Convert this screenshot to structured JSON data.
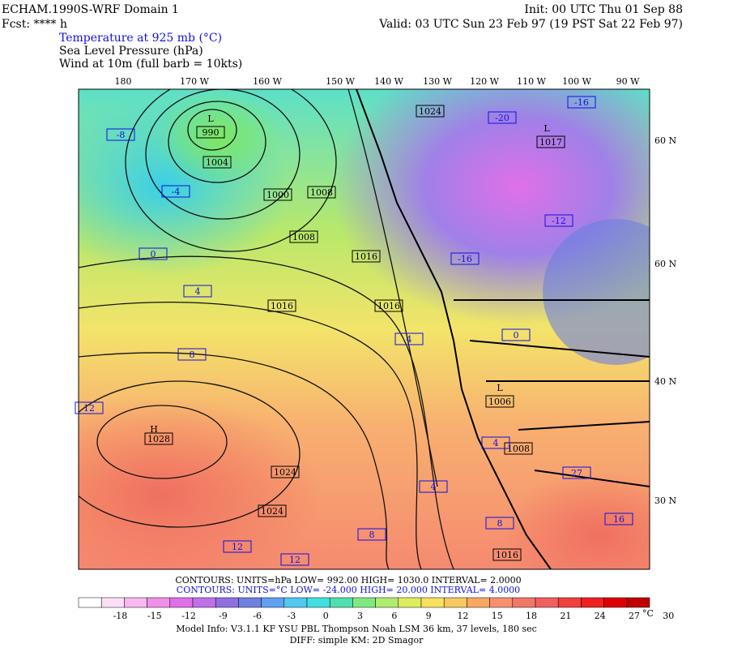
{
  "header": {
    "model": "ECHAM.1990S-WRF Domain 1",
    "fcst": "Fcst: **** h",
    "init": "Init: 00 UTC Thu 01 Sep 88",
    "valid": "Valid: 03 UTC Sun 23 Feb 97 (19 PST Sat 22 Feb 97)",
    "fields": [
      "Temperature at 925 mb (°C)",
      "Sea Level Pressure (hPa)",
      "Wind at 10m (full barb = 10kts)"
    ]
  },
  "map": {
    "lon_labels": [
      "180",
      "170 W",
      "160 W",
      "150 W",
      "140 W",
      "130 W",
      "120 W",
      "110 W",
      "100 W",
      "90 W"
    ],
    "lat_labels": [
      "60 N",
      "60 N",
      "40 N",
      "30 N"
    ],
    "lows": [
      "L",
      "L",
      "L"
    ],
    "highs": [
      "H"
    ],
    "pressure_labels": [
      "990",
      "1004",
      "1000",
      "1008",
      "1008",
      "1016",
      "1016",
      "1016",
      "1024",
      "1024",
      "1024",
      "1028",
      "1006",
      "1008",
      "1017",
      "1016"
    ],
    "temperature_labels": [
      "12",
      "12",
      "12",
      "8",
      "4",
      "4",
      "4",
      "4",
      "8",
      "0",
      "-4",
      "-8",
      "-16",
      "-20",
      "-12",
      "-16",
      "16",
      "27",
      "8",
      "0"
    ]
  },
  "footer": {
    "contours_p": "CONTOURS:  UNITS=hPa  LOW=   992.00      HIGH=   1030.0      INTERVAL=    2.0000",
    "contours_t": "CONTOURS:  UNITS=°C  LOW=  -24.000      HIGH=  20.000       INTERVAL=    4.0000",
    "colorbar_ticks": [
      "-18",
      "-15",
      "-12",
      "-9",
      "-6",
      "-3",
      "0",
      "3",
      "6",
      "9",
      "12",
      "15",
      "18",
      "21",
      "24",
      "27",
      "30"
    ],
    "colorbar_unit": "°C",
    "model_info": "Model Info: V3.1.1    KF     YSU PBL   Thompson     Noah LSM   36 km,    37 levels,   180 sec",
    "diff": "DIFF: simple KM: 2D Smagor"
  }
}
